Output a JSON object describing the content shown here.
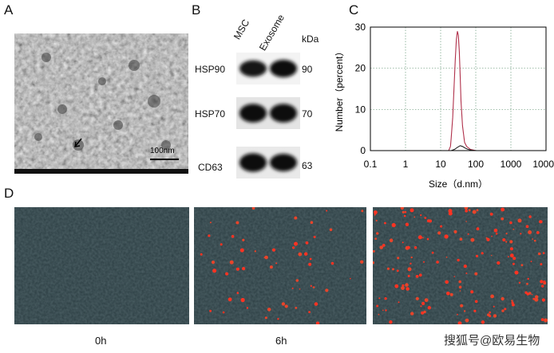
{
  "panels": {
    "a": {
      "label": "A",
      "scale_bar_text": "100nm"
    },
    "b": {
      "label": "B",
      "columns": [
        "MSC",
        "Exosome"
      ],
      "unit_header": "kDa",
      "rows": [
        {
          "protein": "HSP90",
          "kda": "90",
          "msc_intensity": 0.75,
          "exo_intensity": 0.85
        },
        {
          "protein": "HSP70",
          "kda": "70",
          "msc_intensity": 0.95,
          "exo_intensity": 0.95
        },
        {
          "protein": "CD63",
          "kda": "63",
          "msc_intensity": 0.95,
          "exo_intensity": 0.85
        }
      ]
    },
    "c": {
      "label": "C"
    },
    "d": {
      "label": "D",
      "timepoints": [
        "0h",
        "6h",
        ""
      ],
      "signal_density": [
        0.0,
        0.35,
        1.0
      ]
    }
  },
  "watermark": "搜狐号@欧易生物",
  "chart_data": {
    "type": "line",
    "xlabel": "Size（d.nm）",
    "ylabel": "Number（percent）",
    "xscale": "log",
    "xlim": [
      0.1,
      10000
    ],
    "ylim": [
      0,
      30
    ],
    "xticks": [
      "0.1",
      "1",
      "10",
      "100",
      "1000",
      "10000"
    ],
    "yticks": [
      "0",
      "10",
      "20",
      "30"
    ],
    "grid": true,
    "series": [
      {
        "color": "#b0304a",
        "x": [
          0.1,
          10,
          17,
          19,
          20,
          22,
          24,
          26,
          28,
          30,
          32,
          34,
          36,
          38,
          42,
          48,
          55,
          70,
          100,
          1000,
          10000
        ],
        "y": [
          0,
          0,
          0,
          1,
          3,
          8,
          15,
          22,
          27,
          29,
          28,
          24,
          18,
          12,
          6,
          2,
          1,
          0.3,
          0,
          0,
          0
        ]
      },
      {
        "color": "#222222",
        "x": [
          0.1,
          10,
          17,
          20,
          25,
          30,
          36,
          42,
          50,
          60,
          75,
          100,
          1000,
          10000
        ],
        "y": [
          0,
          0,
          0,
          0,
          0.3,
          0.8,
          1.2,
          1.0,
          0.6,
          0.3,
          0.1,
          0,
          0,
          0
        ]
      }
    ]
  }
}
